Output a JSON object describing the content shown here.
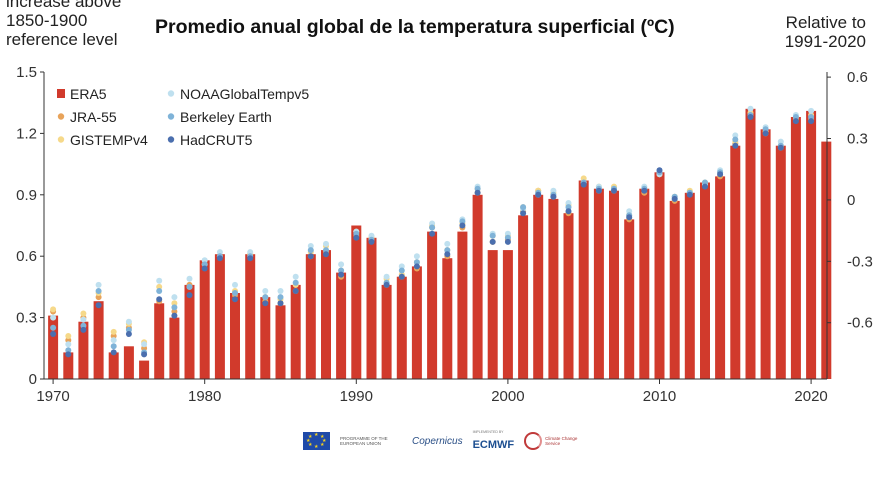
{
  "header": {
    "title": "Promedio anual global de la temperatura superficial (ºC)",
    "left_note": [
      "increase above",
      "1850-1900",
      "reference level"
    ],
    "right_note": [
      "Relative to",
      "1991-2020"
    ]
  },
  "logos": {
    "eu_text": "PROGRAMME OF THE EUROPEAN UNION",
    "copernicus": "opernicus",
    "ecmwf_pre": "IMPLEMENTED BY",
    "ecmwf": "ECMWF",
    "c3s": "Climate Change Service"
  },
  "colors": {
    "ERA5": "#d13a2c",
    "JRA-55": "#e8a35a",
    "GISTEMPv4": "#f6d98a",
    "NOAAGlobalTempv5": "#bfe0ef",
    "Berkeley Earth": "#7fb3d8",
    "HadCRUT5": "#4b6fae"
  },
  "chart_data": {
    "type": "bar",
    "title": "Promedio anual global de la temperatura superficial (ºC)",
    "x": [
      1970,
      1971,
      1972,
      1973,
      1974,
      1975,
      1976,
      1977,
      1978,
      1979,
      1980,
      1981,
      1982,
      1983,
      1984,
      1985,
      1986,
      1987,
      1988,
      1989,
      1990,
      1991,
      1992,
      1993,
      1994,
      1995,
      1996,
      1997,
      1998,
      1999,
      2000,
      2001,
      2002,
      2003,
      2004,
      2005,
      2006,
      2007,
      2008,
      2009,
      2010,
      2011,
      2012,
      2013,
      2014,
      2015,
      2016,
      2017,
      2018,
      2019,
      2020,
      2021
    ],
    "x_ticks": [
      1970,
      1980,
      1990,
      2000,
      2010,
      2020
    ],
    "ylim": [
      0,
      1.5
    ],
    "y_ticks": [
      "0",
      "0.3",
      "0.6",
      "0.9",
      "1.2",
      "1.5"
    ],
    "y2lim": [
      -0.875,
      0.625
    ],
    "y2_ticks": [
      "-0.6",
      "-0.3",
      "0",
      "0.3",
      "0.6"
    ],
    "legend_placement": "top-left",
    "series": [
      {
        "name": "ERA5",
        "style": "bar",
        "values": [
          0.31,
          0.13,
          0.28,
          0.38,
          0.13,
          0.16,
          0.09,
          0.37,
          0.3,
          0.46,
          0.58,
          0.61,
          0.42,
          0.61,
          0.4,
          0.36,
          0.46,
          0.61,
          0.63,
          0.52,
          0.75,
          0.69,
          0.46,
          0.5,
          0.55,
          0.72,
          0.59,
          0.72,
          0.9,
          0.63,
          0.63,
          0.8,
          0.9,
          0.88,
          0.81,
          0.97,
          0.93,
          0.92,
          0.78,
          0.93,
          1.01,
          0.87,
          0.91,
          0.96,
          0.99,
          1.14,
          1.32,
          1.22,
          1.14,
          1.28,
          1.31,
          1.16
        ]
      },
      {
        "name": "JRA-55",
        "style": "dot",
        "values": [
          0.33,
          0.19,
          0.3,
          0.4,
          0.21,
          0.25,
          0.15,
          0.38,
          0.33,
          0.46,
          0.56,
          0.6,
          0.41,
          0.61,
          0.38,
          0.37,
          0.43,
          0.6,
          0.62,
          0.5,
          0.7,
          0.69,
          0.46,
          0.5,
          0.54,
          0.74,
          0.6,
          0.74,
          0.91,
          0.67,
          0.68,
          0.82,
          0.92,
          0.89,
          0.81,
          0.96,
          0.92,
          0.92,
          0.78,
          0.91,
          1.0,
          0.87,
          0.91,
          0.95,
          0.99,
          1.15,
          1.3,
          1.2,
          1.13,
          1.27,
          1.27,
          null
        ]
      },
      {
        "name": "GISTEMPv4",
        "style": "dot",
        "values": [
          0.34,
          0.21,
          0.32,
          0.42,
          0.23,
          0.27,
          0.18,
          0.45,
          0.37,
          0.45,
          0.56,
          0.6,
          0.43,
          0.61,
          0.4,
          0.39,
          0.46,
          0.62,
          0.65,
          0.53,
          0.72,
          0.69,
          0.49,
          0.51,
          0.57,
          0.75,
          0.63,
          0.76,
          0.93,
          0.7,
          0.7,
          0.84,
          0.92,
          0.91,
          0.85,
          0.98,
          0.94,
          0.94,
          0.8,
          0.93,
          1.0,
          0.89,
          0.92,
          0.96,
          1.01,
          1.16,
          1.3,
          1.21,
          1.14,
          1.28,
          1.29,
          null
        ]
      },
      {
        "name": "NOAAGlobalTempv5",
        "style": "dot",
        "values": [
          0.3,
          0.17,
          0.29,
          0.46,
          0.19,
          0.28,
          0.17,
          0.48,
          0.4,
          0.49,
          0.58,
          0.62,
          0.46,
          0.62,
          0.43,
          0.43,
          0.5,
          0.65,
          0.66,
          0.56,
          0.72,
          0.7,
          0.5,
          0.55,
          0.6,
          0.76,
          0.66,
          0.78,
          0.94,
          0.71,
          0.71,
          0.83,
          0.9,
          0.92,
          0.86,
          0.96,
          0.94,
          0.93,
          0.82,
          0.94,
          1.0,
          0.88,
          0.91,
          0.95,
          1.02,
          1.19,
          1.32,
          1.23,
          1.16,
          1.29,
          1.31,
          null
        ]
      },
      {
        "name": "Berkeley Earth",
        "style": "dot",
        "values": [
          0.25,
          0.14,
          0.26,
          0.43,
          0.16,
          0.24,
          0.13,
          0.43,
          0.35,
          0.45,
          0.56,
          0.6,
          0.42,
          0.6,
          0.4,
          0.4,
          0.47,
          0.63,
          0.63,
          0.53,
          0.71,
          0.68,
          0.47,
          0.53,
          0.57,
          0.74,
          0.63,
          0.77,
          0.93,
          0.7,
          0.69,
          0.84,
          0.91,
          0.9,
          0.84,
          0.96,
          0.93,
          0.93,
          0.8,
          0.93,
          1.01,
          0.89,
          0.91,
          0.96,
          1.01,
          1.17,
          1.29,
          1.22,
          1.14,
          1.28,
          1.28,
          null
        ]
      },
      {
        "name": "HadCRUT5",
        "style": "dot",
        "values": [
          0.22,
          0.12,
          0.24,
          0.36,
          0.13,
          0.22,
          0.12,
          0.39,
          0.31,
          0.41,
          0.54,
          0.59,
          0.39,
          0.59,
          0.37,
          0.37,
          0.43,
          0.6,
          0.61,
          0.51,
          0.69,
          0.67,
          0.46,
          0.5,
          0.55,
          0.71,
          0.61,
          0.75,
          0.91,
          0.67,
          0.67,
          0.81,
          0.9,
          0.89,
          0.82,
          0.95,
          0.92,
          0.92,
          0.79,
          0.92,
          1.02,
          0.88,
          0.9,
          0.94,
          1.0,
          1.14,
          1.28,
          1.2,
          1.13,
          1.26,
          1.26,
          null
        ]
      }
    ]
  }
}
